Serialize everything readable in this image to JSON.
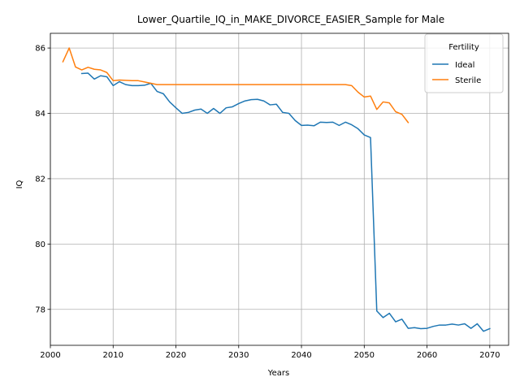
{
  "chart_data": {
    "type": "line",
    "title": "Lower_Quartile_IQ_in_MAKE_DIVORCE_EASIER_Sample for Male",
    "xlabel": "Years",
    "ylabel": "IQ",
    "xlim": [
      2000,
      2073
    ],
    "ylim": [
      76.9,
      86.45
    ],
    "xticks": [
      2000,
      2010,
      2020,
      2030,
      2040,
      2050,
      2060,
      2070
    ],
    "yticks": [
      78,
      80,
      82,
      84,
      86
    ],
    "grid": true,
    "legend": {
      "title": "Fertility",
      "placement": "top-right"
    },
    "series": [
      {
        "name": "Ideal",
        "color": "#1f77b4",
        "x": [
          2005,
          2006,
          2007,
          2008,
          2009,
          2010,
          2011,
          2012,
          2013,
          2014,
          2015,
          2016,
          2017,
          2018,
          2019,
          2020,
          2021,
          2022,
          2023,
          2024,
          2025,
          2026,
          2027,
          2028,
          2029,
          2030,
          2031,
          2032,
          2033,
          2034,
          2035,
          2036,
          2037,
          2038,
          2039,
          2040,
          2041,
          2042,
          2043,
          2044,
          2045,
          2046,
          2047,
          2048,
          2049,
          2050,
          2051,
          2052,
          2053,
          2054,
          2055,
          2056,
          2057,
          2058,
          2059,
          2060,
          2061,
          2062,
          2063,
          2064,
          2065,
          2066,
          2067,
          2068,
          2069,
          2070
        ],
        "y": [
          85.22,
          85.23,
          85.05,
          85.15,
          85.12,
          84.85,
          84.97,
          84.88,
          84.85,
          84.85,
          84.86,
          84.92,
          84.67,
          84.6,
          84.35,
          84.17,
          84.0,
          84.03,
          84.1,
          84.13,
          84.0,
          84.15,
          84.0,
          84.17,
          84.2,
          84.3,
          84.38,
          84.42,
          84.43,
          84.38,
          84.26,
          84.28,
          84.03,
          84.0,
          83.78,
          83.63,
          83.64,
          83.62,
          83.73,
          83.72,
          83.73,
          83.63,
          83.73,
          83.65,
          83.53,
          83.34,
          83.26,
          77.95,
          77.75,
          77.88,
          77.62,
          77.7,
          77.42,
          77.44,
          77.41,
          77.42,
          77.48,
          77.52,
          77.52,
          77.55,
          77.52,
          77.56,
          77.42,
          77.56,
          77.33,
          77.41
        ]
      },
      {
        "name": "Sterile",
        "color": "#ff7f0e",
        "x": [
          2002,
          2003,
          2004,
          2005,
          2006,
          2007,
          2008,
          2009,
          2010,
          2011,
          2012,
          2013,
          2014,
          2015,
          2016,
          2017,
          2018,
          2019,
          2020,
          2021,
          2022,
          2023,
          2024,
          2025,
          2026,
          2027,
          2028,
          2029,
          2030,
          2031,
          2032,
          2033,
          2034,
          2035,
          2036,
          2037,
          2038,
          2039,
          2040,
          2041,
          2042,
          2043,
          2044,
          2045,
          2046,
          2047,
          2048,
          2049,
          2050,
          2051,
          2052,
          2053,
          2054,
          2055,
          2056,
          2057
        ],
        "y": [
          85.58,
          86.0,
          85.42,
          85.33,
          85.41,
          85.35,
          85.33,
          85.25,
          85.0,
          85.02,
          85.01,
          85.0,
          85.0,
          84.96,
          84.92,
          84.88,
          84.88,
          84.88,
          84.88,
          84.88,
          84.88,
          84.88,
          84.88,
          84.88,
          84.88,
          84.88,
          84.88,
          84.88,
          84.88,
          84.88,
          84.88,
          84.88,
          84.88,
          84.88,
          84.88,
          84.88,
          84.88,
          84.88,
          84.88,
          84.88,
          84.88,
          84.88,
          84.88,
          84.88,
          84.88,
          84.88,
          84.85,
          84.65,
          84.5,
          84.53,
          84.12,
          84.35,
          84.32,
          84.05,
          83.97,
          83.72
        ]
      }
    ]
  }
}
